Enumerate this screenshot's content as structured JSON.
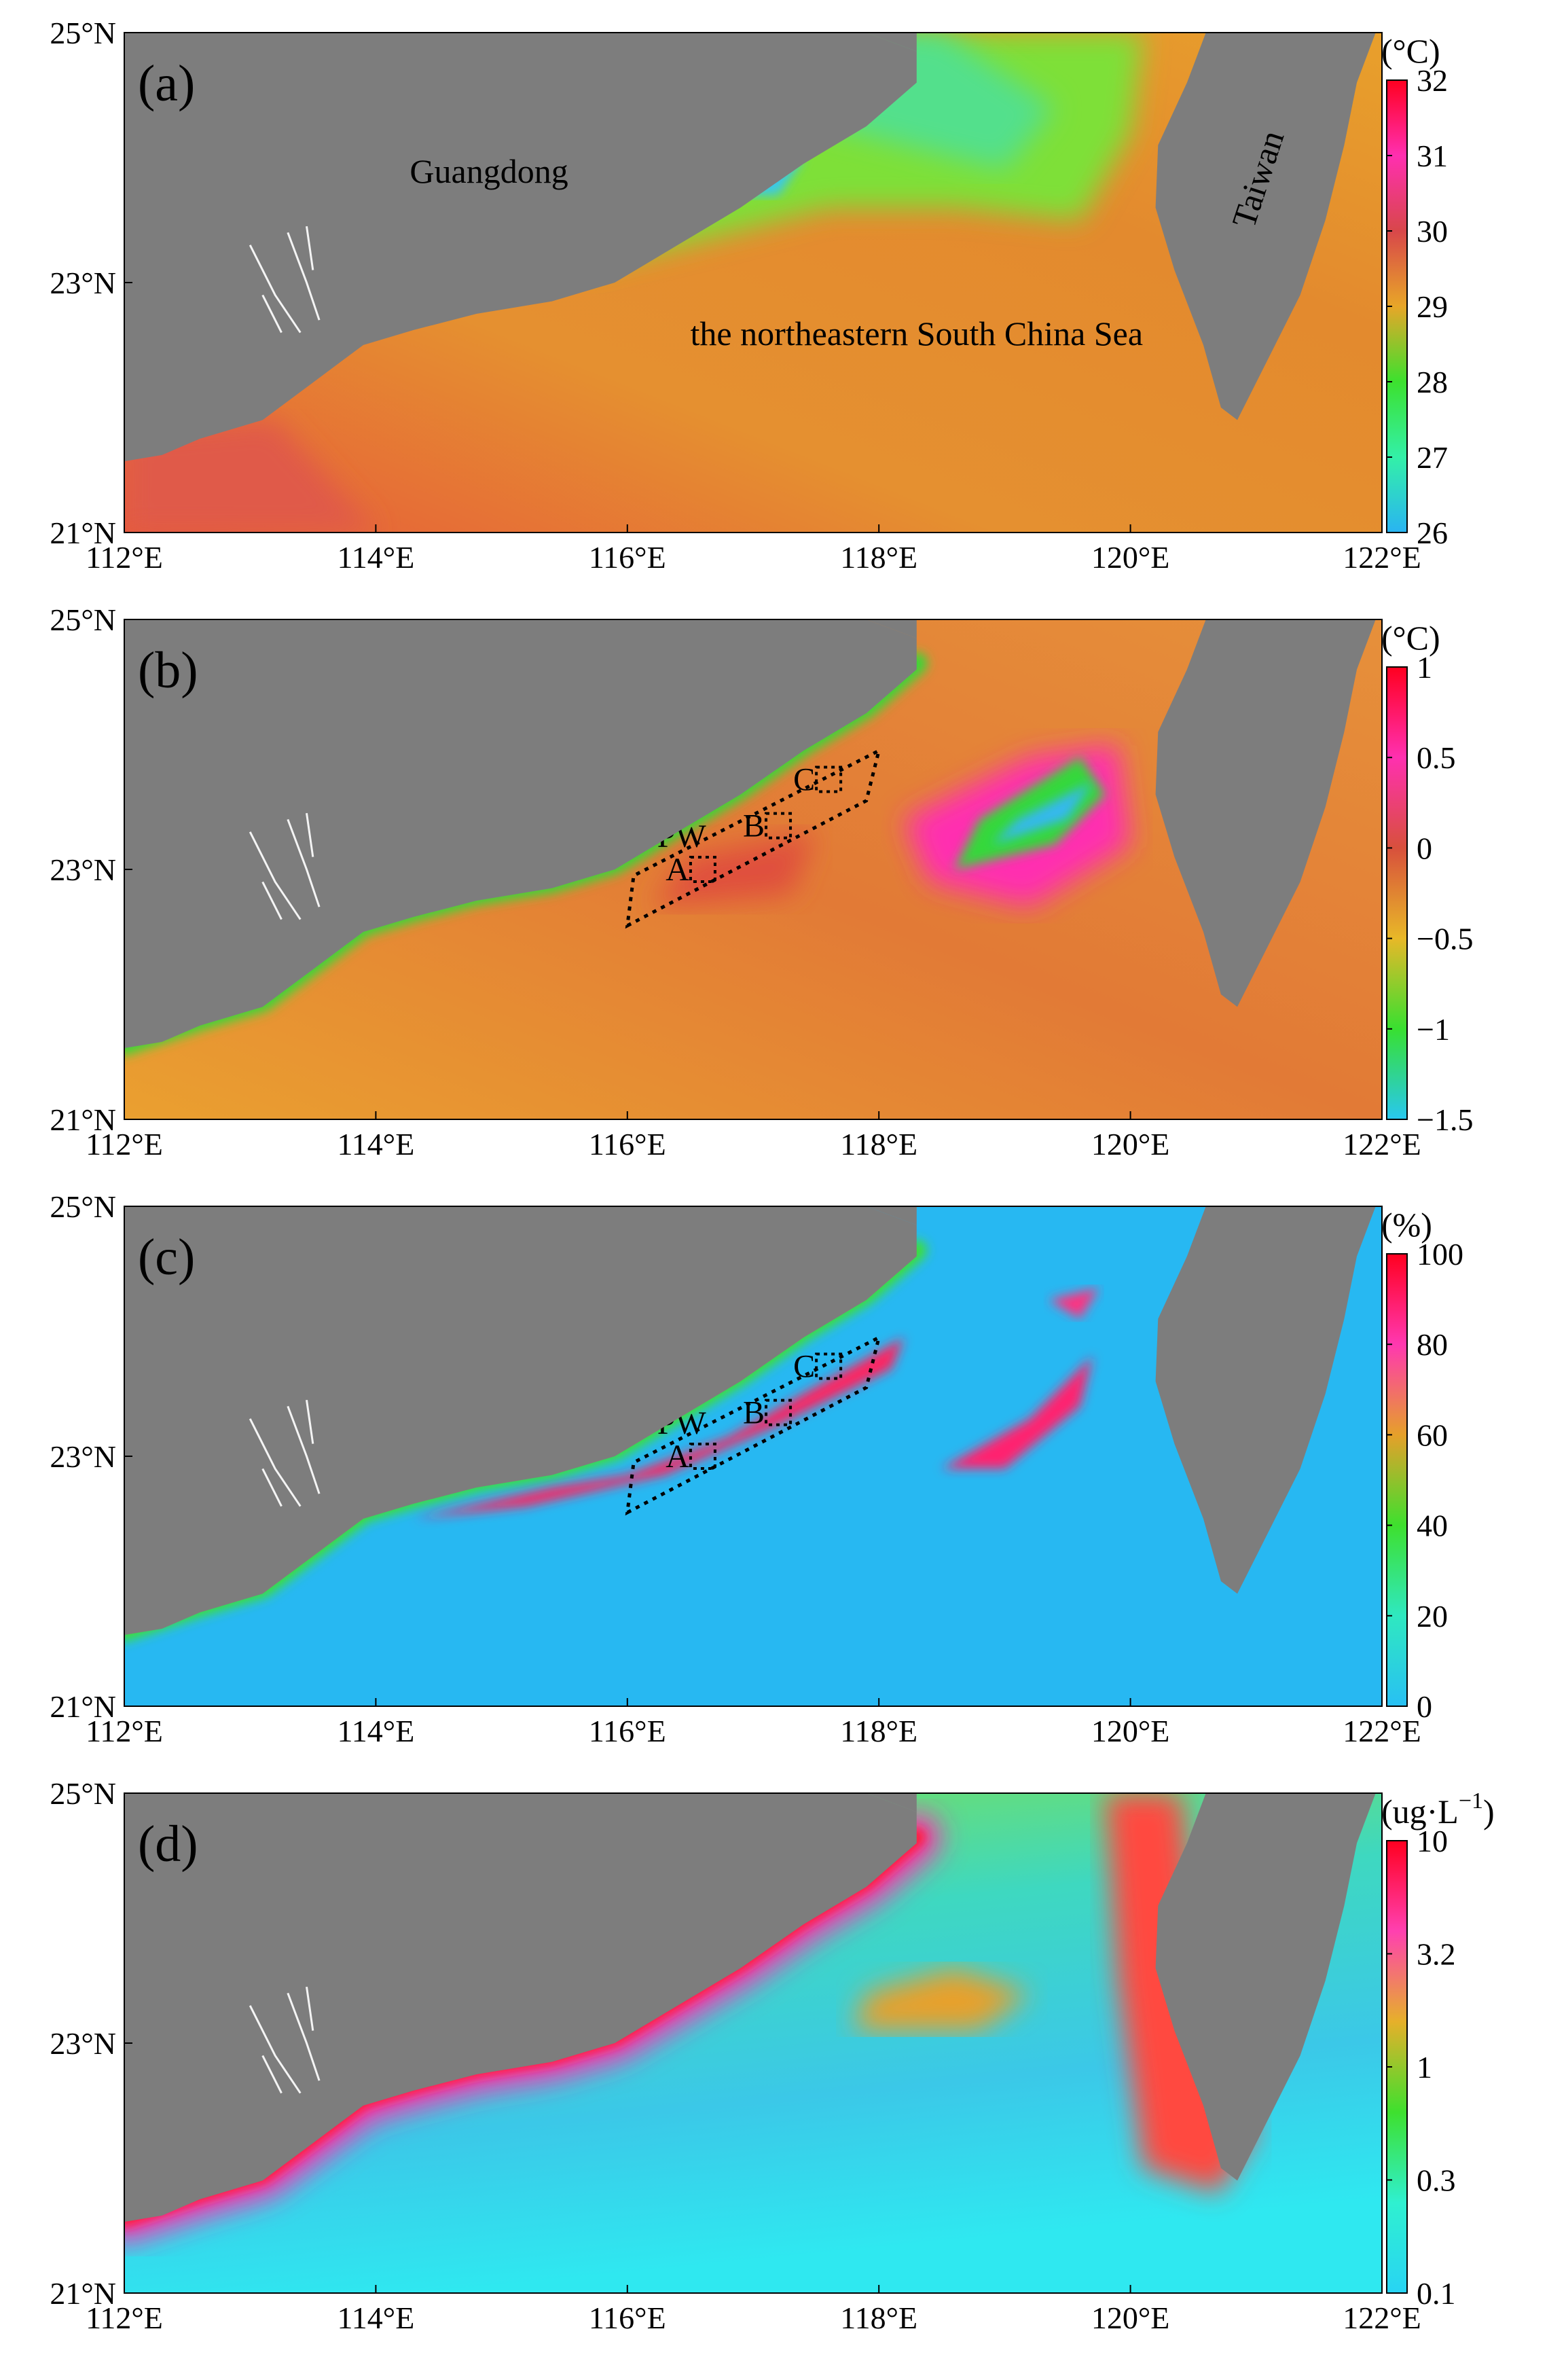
{
  "figure": {
    "x_ticks": [
      "112°E",
      "114°E",
      "116°E",
      "118°E",
      "120°E",
      "122°E"
    ],
    "y_ticks": [
      "21°N",
      "23°N",
      "25°N"
    ],
    "colors": {
      "land": "#7d7d7d",
      "frame": "#000000"
    }
  },
  "panels": [
    {
      "label": "(a)",
      "unit": "(°C)",
      "colorbar_ticks": [
        "32",
        "31",
        "30",
        "29",
        "28",
        "27",
        "26"
      ],
      "colorbar_stops": [
        "#ff0020",
        "#ff2fb0",
        "#d8474a",
        "#e8a628",
        "#3ce12e",
        "#33f0a8",
        "#29b4f2"
      ],
      "places": [
        {
          "name": "Guangdong",
          "lon": 114.9,
          "lat": 23.8,
          "rotate": 0
        },
        {
          "name": "the northeastern South China Sea",
          "lon": 118.3,
          "lat": 22.5,
          "rotate": 0
        },
        {
          "name": "Taiwan",
          "lon": 121.1,
          "lat": 23.8,
          "rotate": -72
        }
      ]
    },
    {
      "label": "(b)",
      "unit": "(°C)",
      "colorbar_ticks": [
        "1",
        "0.5",
        "0",
        "−0.5",
        "−1",
        "−1.5"
      ],
      "colorbar_stops": [
        "#ff0020",
        "#ff30b0",
        "#d8503c",
        "#e8b828",
        "#38e030",
        "#28c8f0"
      ],
      "upwelling_box_label": "UPW",
      "sub_boxes": [
        "A",
        "B",
        "C"
      ]
    },
    {
      "label": "(c)",
      "unit": "(%)",
      "colorbar_ticks": [
        "100",
        "80",
        "60",
        "40",
        "20",
        "0"
      ],
      "colorbar_stops": [
        "#ff0020",
        "#ff38b0",
        "#e6a02a",
        "#3ee02e",
        "#2fe8c0",
        "#28c0f4"
      ],
      "upwelling_box_label": "UPW",
      "sub_boxes": [
        "A",
        "B",
        "C"
      ]
    },
    {
      "label": "(d)",
      "unit": "(ug·L",
      "unit_exp": "−1",
      "unit_close": ")",
      "colorbar_ticks": [
        "10",
        "3.2",
        "1",
        "0.3",
        "0.1"
      ],
      "colorbar_stops": [
        "#ff0020",
        "#ff40b0",
        "#e6b02a",
        "#3ee02e",
        "#2ff0d0",
        "#28d4f4"
      ]
    }
  ]
}
